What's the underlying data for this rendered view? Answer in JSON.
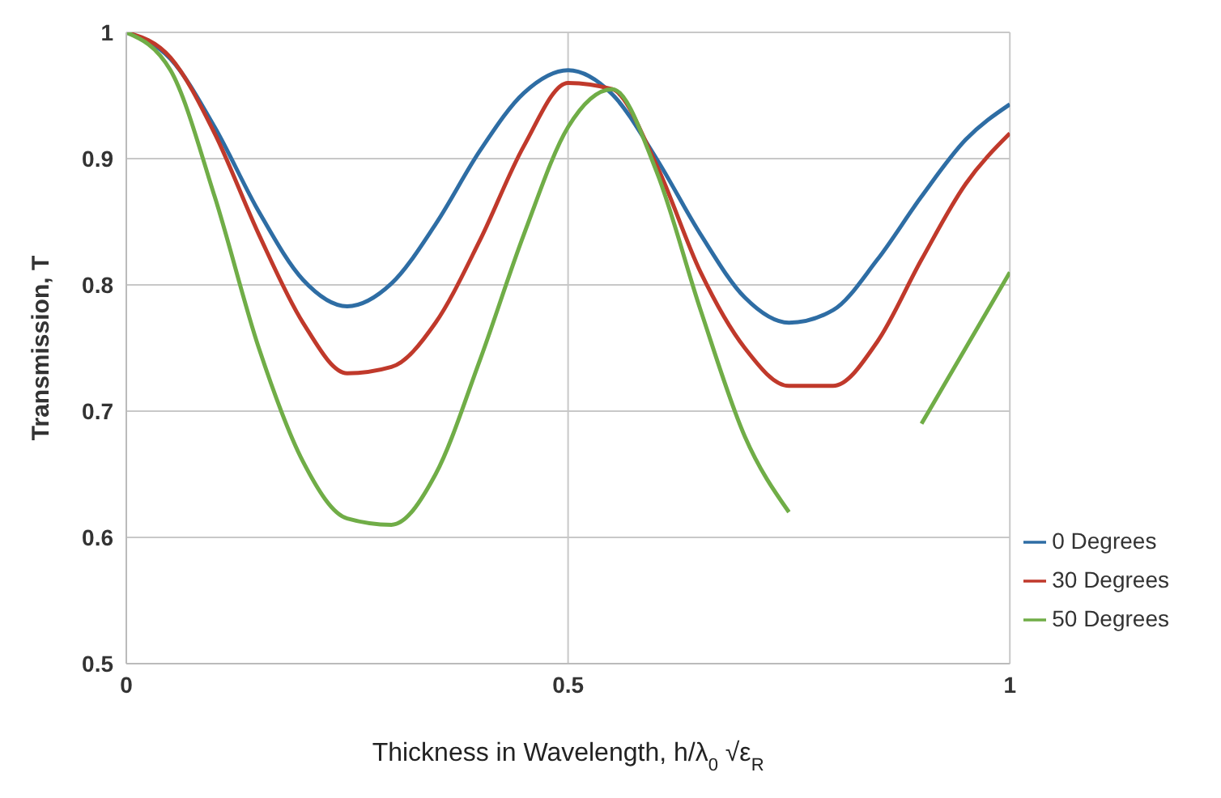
{
  "chart_data": {
    "type": "line",
    "xlabel": "Thickness in Wavelength, h/λ$_{0}$ √ε$_{R}$",
    "ylabel": "Transmission, T",
    "x": [
      0,
      0.05,
      0.1,
      0.15,
      0.2,
      0.25,
      0.3,
      0.35,
      0.4,
      0.45,
      0.5,
      0.55,
      0.6,
      0.65,
      0.7,
      0.75,
      0.8,
      0.85,
      0.9,
      0.95,
      1
    ],
    "series": [
      {
        "name": "0 Degrees",
        "color": "#2e6da4",
        "values": [
          1,
          0.979,
          0.925,
          0.858,
          0.804,
          0.783,
          0.801,
          0.848,
          0.906,
          0.952,
          0.97,
          0.951,
          0.9,
          0.84,
          0.79,
          0.77,
          0.78,
          0.82,
          0.87,
          0.915,
          0.943
        ]
      },
      {
        "name": "30 Degrees",
        "color": "#c0392b",
        "values": [
          1,
          0.98,
          0.92,
          0.84,
          0.77,
          0.73,
          0.735,
          0.77,
          0.835,
          0.91,
          0.96,
          0.955,
          0.895,
          0.81,
          0.75,
          0.72,
          0.72,
          0.755,
          0.82,
          0.88,
          0.92
        ]
      },
      {
        "name": "50 Degrees",
        "color": "#70ad47",
        "values": [
          1,
          0.97,
          0.87,
          0.75,
          0.66,
          0.615,
          0.61,
          0.65,
          0.74,
          0.84,
          0.925,
          0.955,
          0.89,
          0.78,
          0.68,
          0.62,
          null,
          null,
          0.69,
          0.75,
          0.81
        ]
      }
    ],
    "xlim": [
      0,
      1
    ],
    "xticks": [
      0,
      0.5,
      1
    ],
    "ylim": [
      0.5,
      1
    ],
    "yticks": [
      0.5,
      0.6,
      0.7,
      0.8,
      0.9,
      1
    ],
    "grid": true,
    "legend": "bottom right",
    "marker": "none",
    "line_style": "solid"
  }
}
